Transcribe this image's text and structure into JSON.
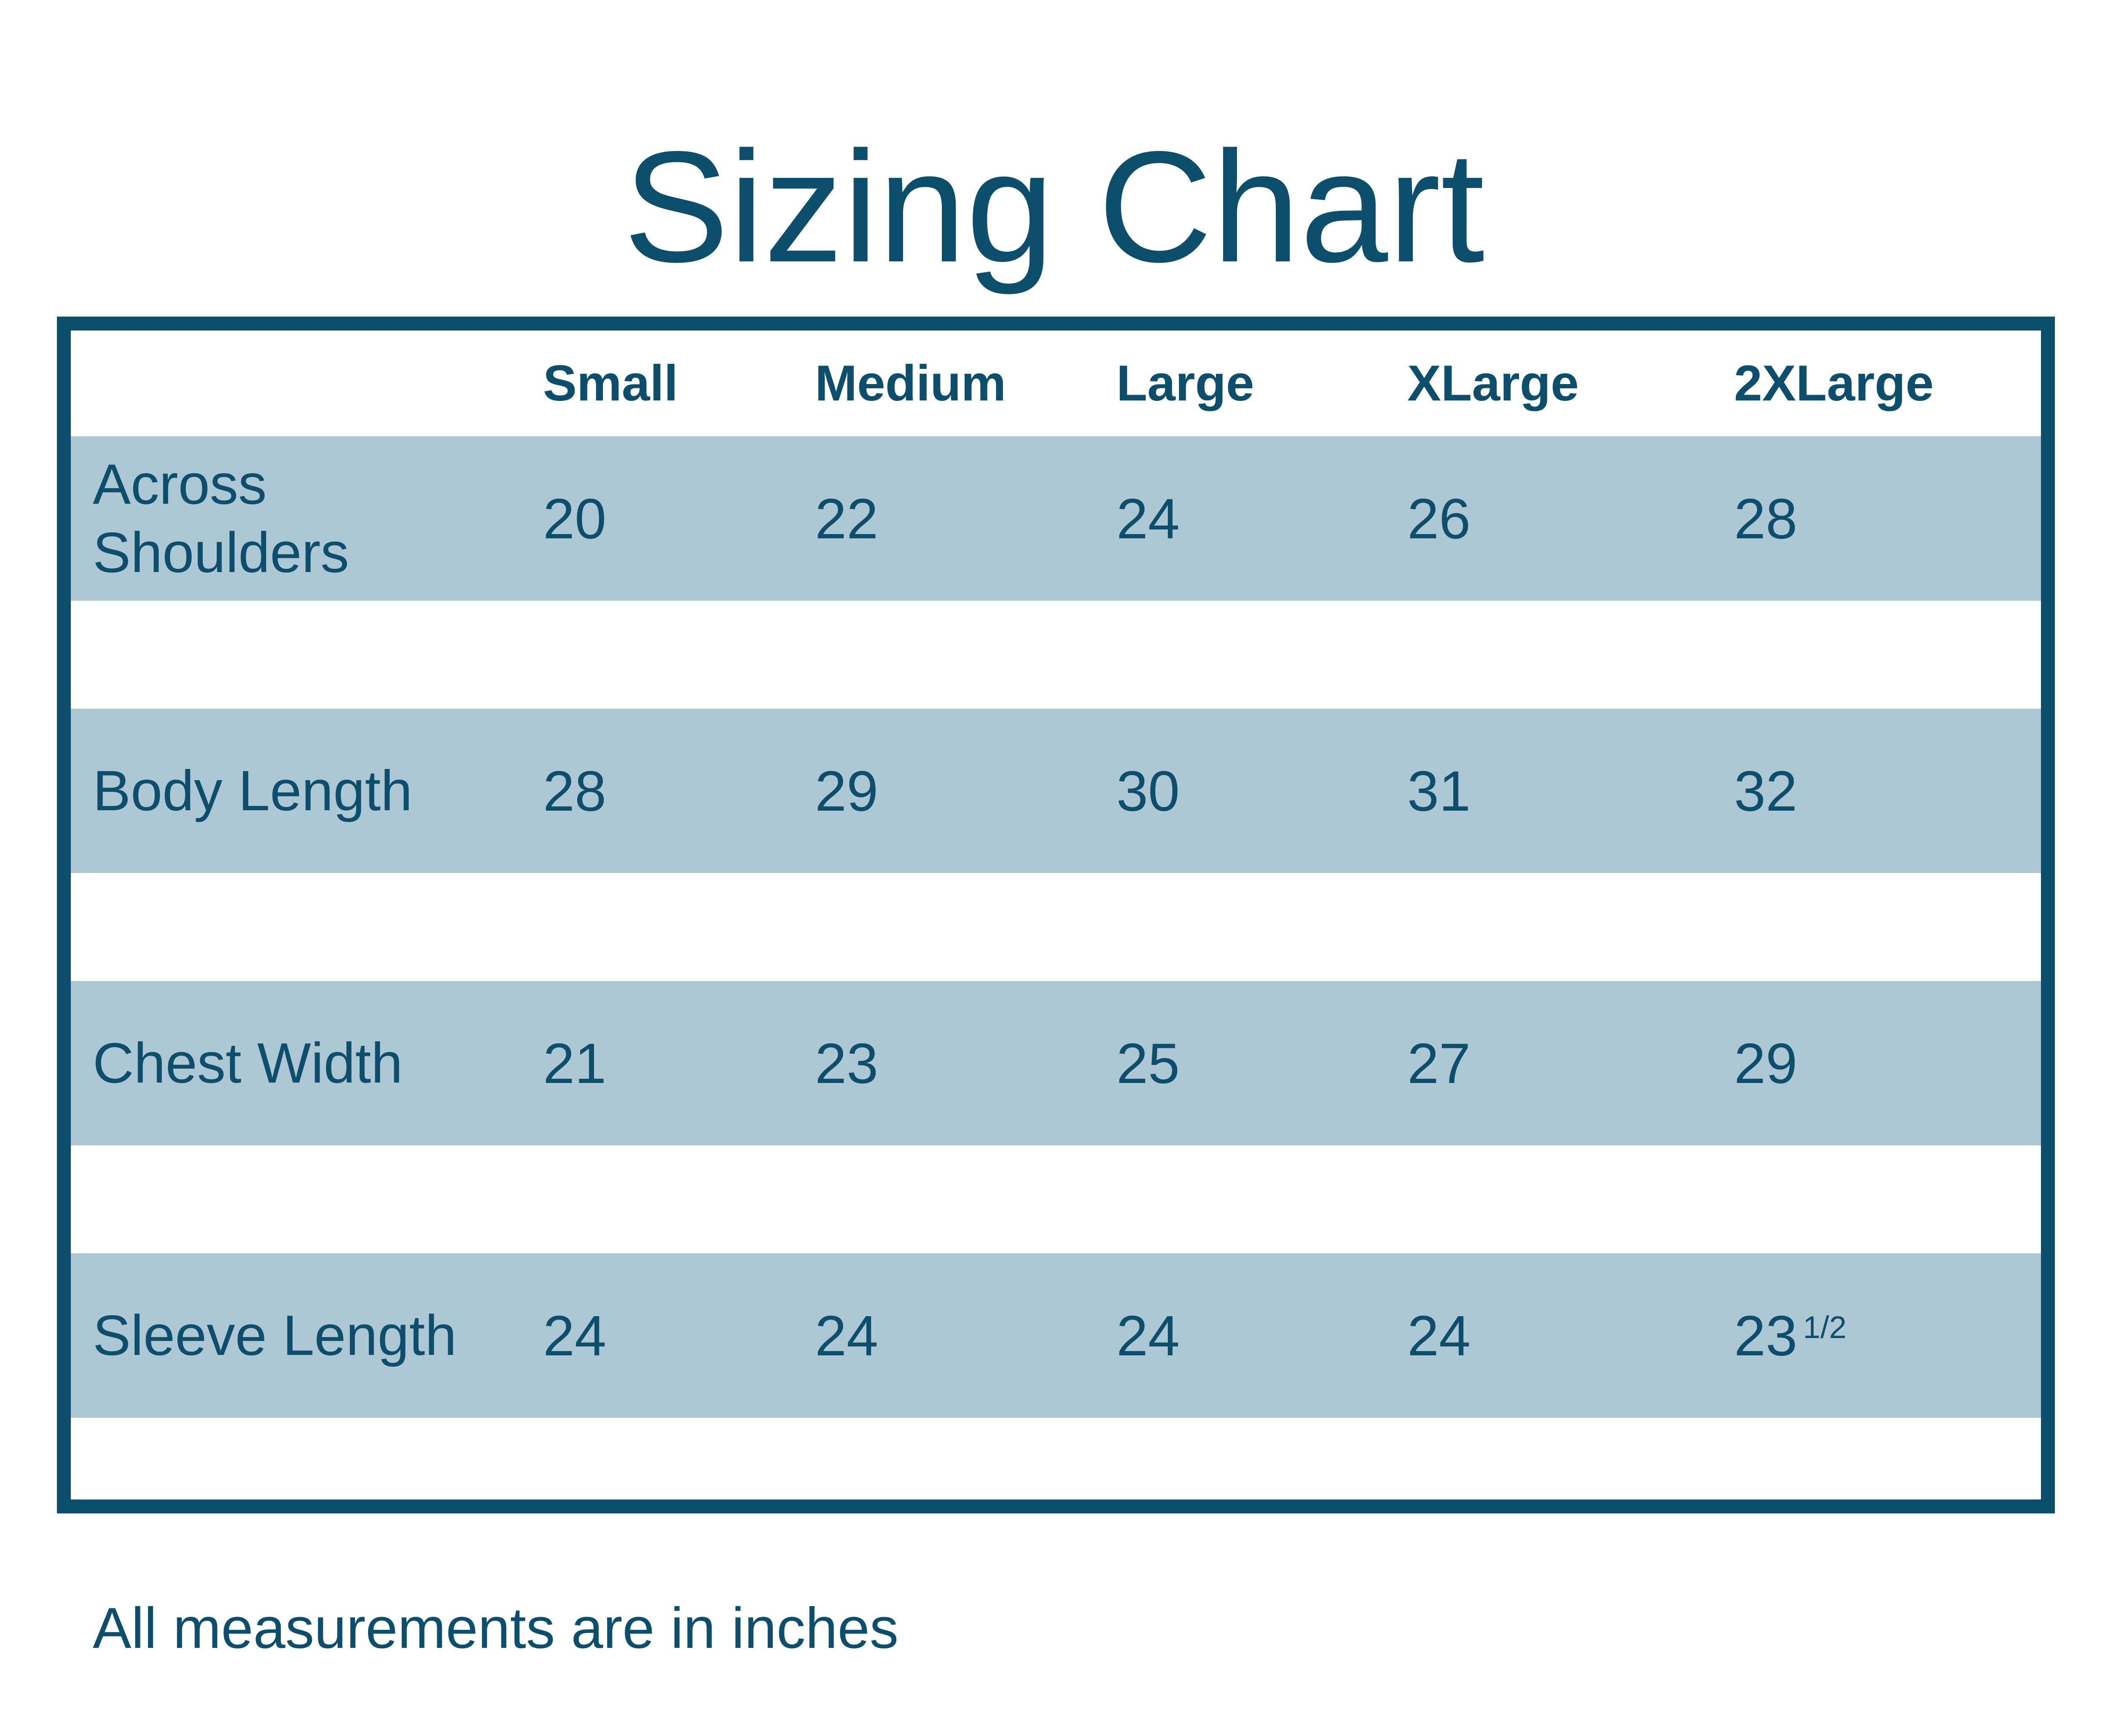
{
  "title": "Sizing Chart",
  "footnote": "All measurements are in inches",
  "colors": {
    "dark_blue": "#0e4e6d",
    "row_band_blue": "#aec7d4"
  },
  "table": {
    "size_headers": [
      "Small",
      "Medium",
      "Large",
      "XLarge",
      "2XLarge"
    ],
    "rows": [
      {
        "label": "Across Shoulders",
        "values": [
          "20",
          "22",
          "24",
          "26",
          "28"
        ]
      },
      {
        "label": "Body Length",
        "values": [
          "28",
          "29",
          "30",
          "31",
          "32"
        ]
      },
      {
        "label": "Chest Width",
        "values": [
          "21",
          "23",
          "25",
          "27",
          "29"
        ]
      },
      {
        "label": "Sleeve Length",
        "values": [
          "24",
          "24",
          "24",
          "24",
          "23"
        ],
        "fraction": "1/2"
      }
    ]
  },
  "chart_data": {
    "type": "table",
    "title": "Sizing Chart",
    "columns": [
      "Small",
      "Medium",
      "Large",
      "XLarge",
      "2XLarge"
    ],
    "rows": [
      {
        "label": "Across Shoulders",
        "values": [
          20,
          22,
          24,
          26,
          28
        ]
      },
      {
        "label": "Body Length",
        "values": [
          28,
          29,
          30,
          31,
          32
        ]
      },
      {
        "label": "Chest Width",
        "values": [
          21,
          23,
          25,
          27,
          29
        ]
      },
      {
        "label": "Sleeve Length",
        "values": [
          24,
          24,
          24,
          24,
          23.5
        ]
      }
    ],
    "note": "All measurements are in inches",
    "units": "inches"
  }
}
